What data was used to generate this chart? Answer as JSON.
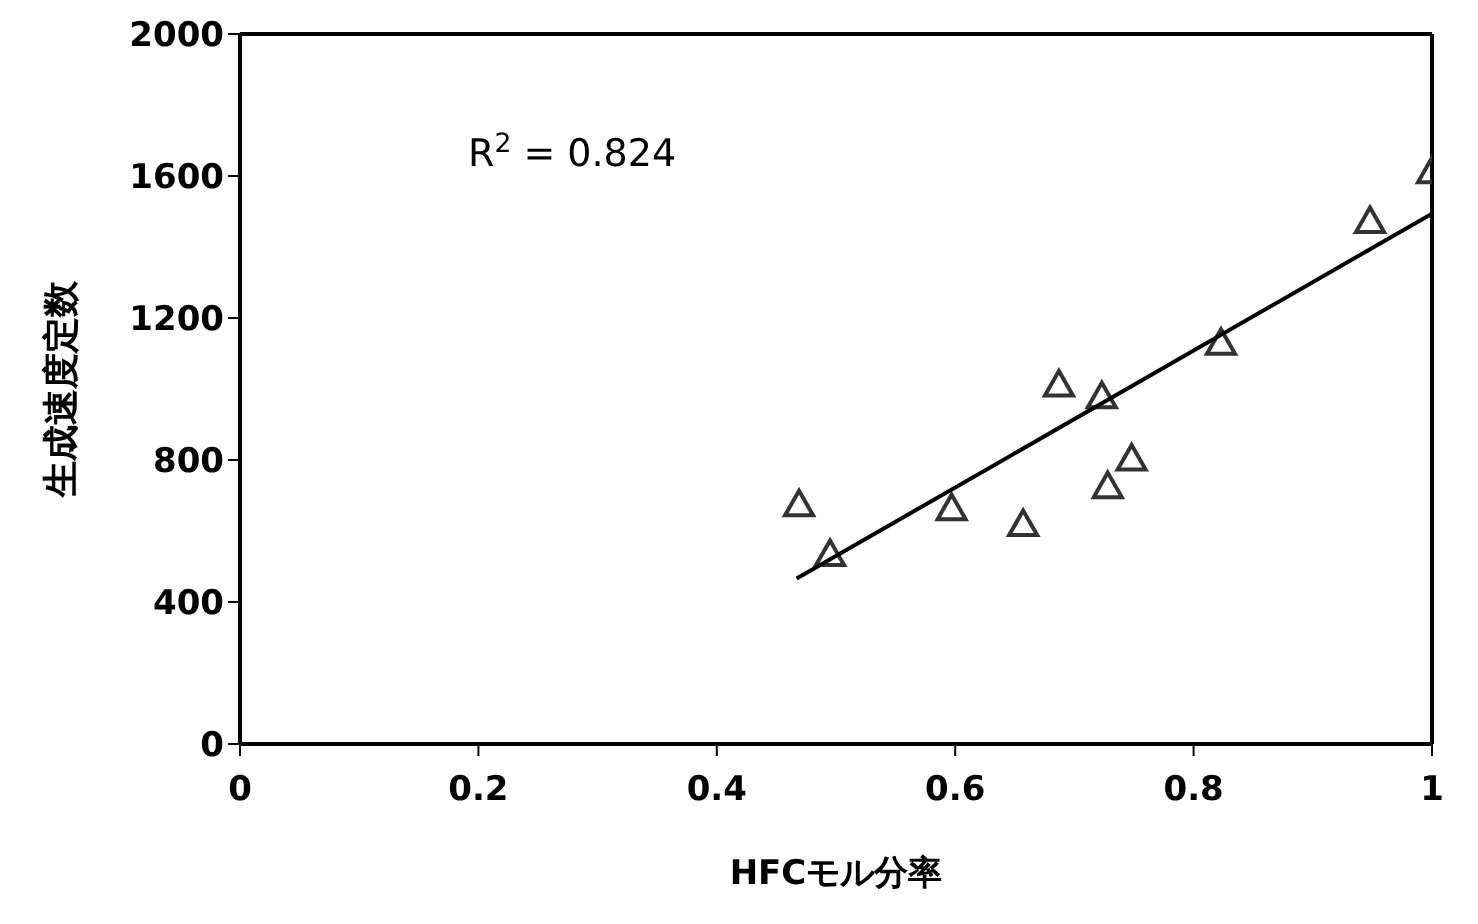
{
  "chart_data": {
    "type": "scatter",
    "xlabel": "HFCモル分率",
    "ylabel": "生成速度定数",
    "annotations": [
      "R$^{2}$ = 0.824"
    ],
    "xlim": [
      0,
      1
    ],
    "xticks": [
      0,
      0.2,
      0.4,
      0.6,
      0.8,
      1
    ],
    "ylim": [
      0,
      2000
    ],
    "yticks": [
      0,
      400,
      800,
      1200,
      1600,
      2000
    ],
    "marker": "triangle",
    "series": [
      {
        "color": "#333333",
        "x": [
          0.469,
          0.495,
          0.597,
          0.657,
          0.687,
          0.723,
          0.728,
          0.748,
          0.823,
          0.948,
          1.0
        ],
        "values": [
          674,
          534,
          663,
          618,
          1011,
          978,
          725,
          803,
          1129,
          1472,
          1612
        ]
      },
      {
        "type": "line",
        "marker": "none",
        "color": "#000000",
        "x": [
          0.467,
          1.0
        ],
        "values": [
          466,
          1494
        ]
      }
    ]
  }
}
